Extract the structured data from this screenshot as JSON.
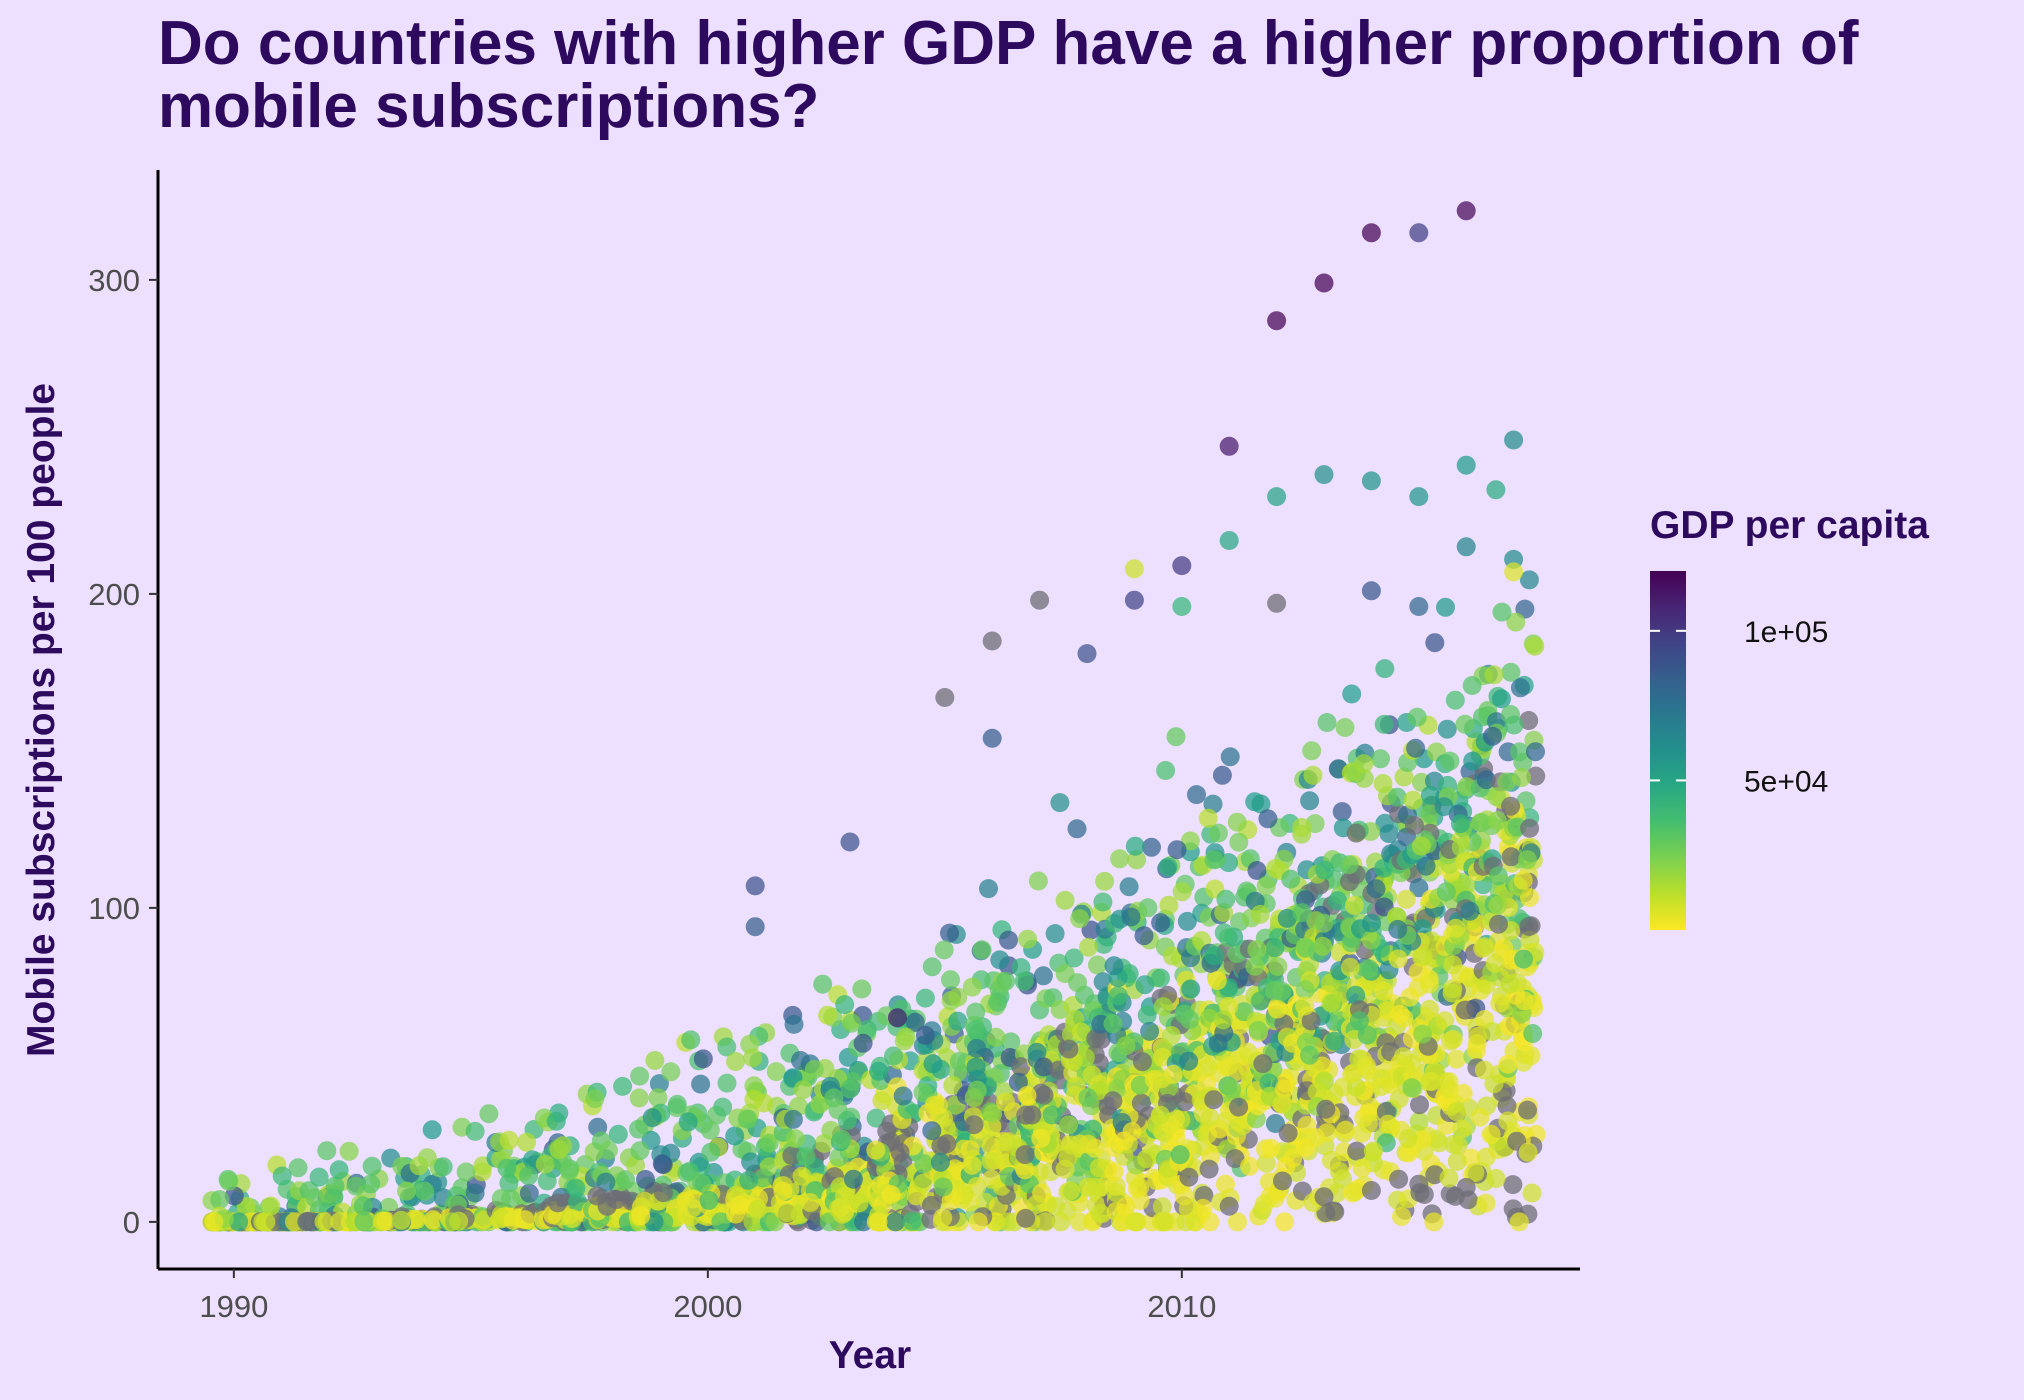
{
  "chart_data": {
    "type": "scatter",
    "title": "Do countries with higher GDP have a higher proportion of mobile subscriptions?",
    "xlabel": "Year",
    "ylabel": "Mobile subscriptions per 100 people",
    "xlim": [
      1988.4,
      2018.4
    ],
    "ylim": [
      -15,
      335
    ],
    "x_ticks": [
      1990,
      2000,
      2010
    ],
    "y_ticks": [
      0,
      100,
      200,
      300
    ],
    "grid": false,
    "legend": {
      "title": "GDP per capita",
      "placement": "right",
      "type": "colorbar",
      "range": [
        0,
        120000
      ],
      "ticks": [
        {
          "value": 100000,
          "label": "1e+05"
        },
        {
          "value": 50000,
          "label": "5e+04"
        }
      ]
    },
    "colors": {
      "background": "#ede0fe",
      "title": "#2e0a5e",
      "missing_gdp": "#6e6e76",
      "palette": "viridis"
    },
    "points": [
      {
        "year": 2016,
        "value": 322,
        "gdp": 118000
      },
      {
        "year": 2014,
        "value": 315,
        "gdp": 125000
      },
      {
        "year": 2015,
        "value": 315,
        "gdp": 98000
      },
      {
        "year": 2013,
        "value": 299,
        "gdp": 125000
      },
      {
        "year": 2012,
        "value": 287,
        "gdp": 120000
      },
      {
        "year": 2011,
        "value": 247,
        "gdp": 112000
      },
      {
        "year": 2017,
        "value": 249,
        "gdp": 62000
      },
      {
        "year": 2016,
        "value": 241,
        "gdp": 55000
      },
      {
        "year": 2013,
        "value": 238,
        "gdp": 60000
      },
      {
        "year": 2014,
        "value": 236,
        "gdp": 58000
      },
      {
        "year": 2015,
        "value": 231,
        "gdp": 57000
      },
      {
        "year": 2012,
        "value": 231,
        "gdp": 50000
      },
      {
        "year": 2011,
        "value": 217,
        "gdp": 48000
      },
      {
        "year": 2016,
        "value": 215,
        "gdp": 66000
      },
      {
        "year": 2017,
        "value": 211,
        "gdp": 62000
      },
      {
        "year": 2010,
        "value": 209,
        "gdp": 100000
      },
      {
        "year": 2009,
        "value": 208,
        "gdp": 9000
      },
      {
        "year": 2017,
        "value": 207,
        "gdp": 6000
      },
      {
        "year": 2014,
        "value": 201,
        "gdp": 88000
      },
      {
        "year": 2009,
        "value": 198,
        "gdp": 96000
      },
      {
        "year": 2007,
        "value": 198,
        "gdp": null
      },
      {
        "year": 2012,
        "value": 197,
        "gdp": null
      },
      {
        "year": 2015,
        "value": 196,
        "gdp": 80000
      },
      {
        "year": 2010,
        "value": 196,
        "gdp": 40000
      },
      {
        "year": 2006,
        "value": 185,
        "gdp": null
      },
      {
        "year": 2008,
        "value": 181,
        "gdp": 90000
      },
      {
        "year": 2005,
        "value": 167,
        "gdp": null
      },
      {
        "year": 2006,
        "value": 154,
        "gdp": 85000
      },
      {
        "year": 2003,
        "value": 121,
        "gdp": 90000
      },
      {
        "year": 2001,
        "value": 107,
        "gdp": 90000
      },
      {
        "year": 2001,
        "value": 94,
        "gdp": 85000
      },
      {
        "year": 2004,
        "value": 65,
        "gdp": 110000
      },
      {
        "year": 2011,
        "value": 5,
        "gdp": null
      },
      {
        "year": 2013,
        "value": 8,
        "gdp": null
      },
      {
        "year": 2014,
        "value": 10,
        "gdp": null
      },
      {
        "year": 2015,
        "value": 12,
        "gdp": null
      },
      {
        "year": 2016,
        "value": 11,
        "gdp": null
      }
    ],
    "generated_cloud_note": "dense cloud of several thousand country-year points from 1990 to 2017"
  }
}
